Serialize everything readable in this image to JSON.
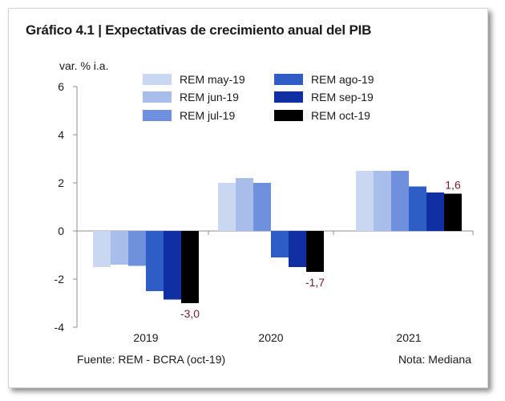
{
  "title": "Gráfico 4.1 | Expectativas de crecimiento anual del PIB",
  "source": "Fuente: REM - BCRA (oct-19)",
  "note": "Nota: Mediana",
  "chart_data": {
    "type": "bar",
    "ylabel": "var. % i.a.",
    "xlabel": "",
    "ylim": [
      -4,
      6
    ],
    "yticks": [
      -4,
      -2,
      0,
      2,
      4,
      6
    ],
    "categories": [
      "2019",
      "2020",
      "2021"
    ],
    "series": [
      {
        "name": "REM may-19",
        "color": "#c9d7f0",
        "values": [
          -1.5,
          2.0,
          2.5
        ]
      },
      {
        "name": "REM jun-19",
        "color": "#a8bde9",
        "values": [
          -1.4,
          2.2,
          2.5
        ]
      },
      {
        "name": "REM jul-19",
        "color": "#6e90dd",
        "values": [
          -1.45,
          2.0,
          2.5
        ]
      },
      {
        "name": "REM ago-19",
        "color": "#2e5dc6",
        "values": [
          -2.5,
          -1.1,
          1.85
        ]
      },
      {
        "name": "REM sep-19",
        "color": "#0f2fa3",
        "values": [
          -2.85,
          -1.5,
          1.6
        ]
      },
      {
        "name": "REM oct-19",
        "color": "#000000",
        "values": [
          -3.0,
          -1.7,
          1.55
        ]
      }
    ],
    "data_labels": [
      "-3,0",
      "-1,7",
      "1,6"
    ],
    "data_label_color": "#7a1c2e",
    "grid": false,
    "legend_position": "top"
  }
}
